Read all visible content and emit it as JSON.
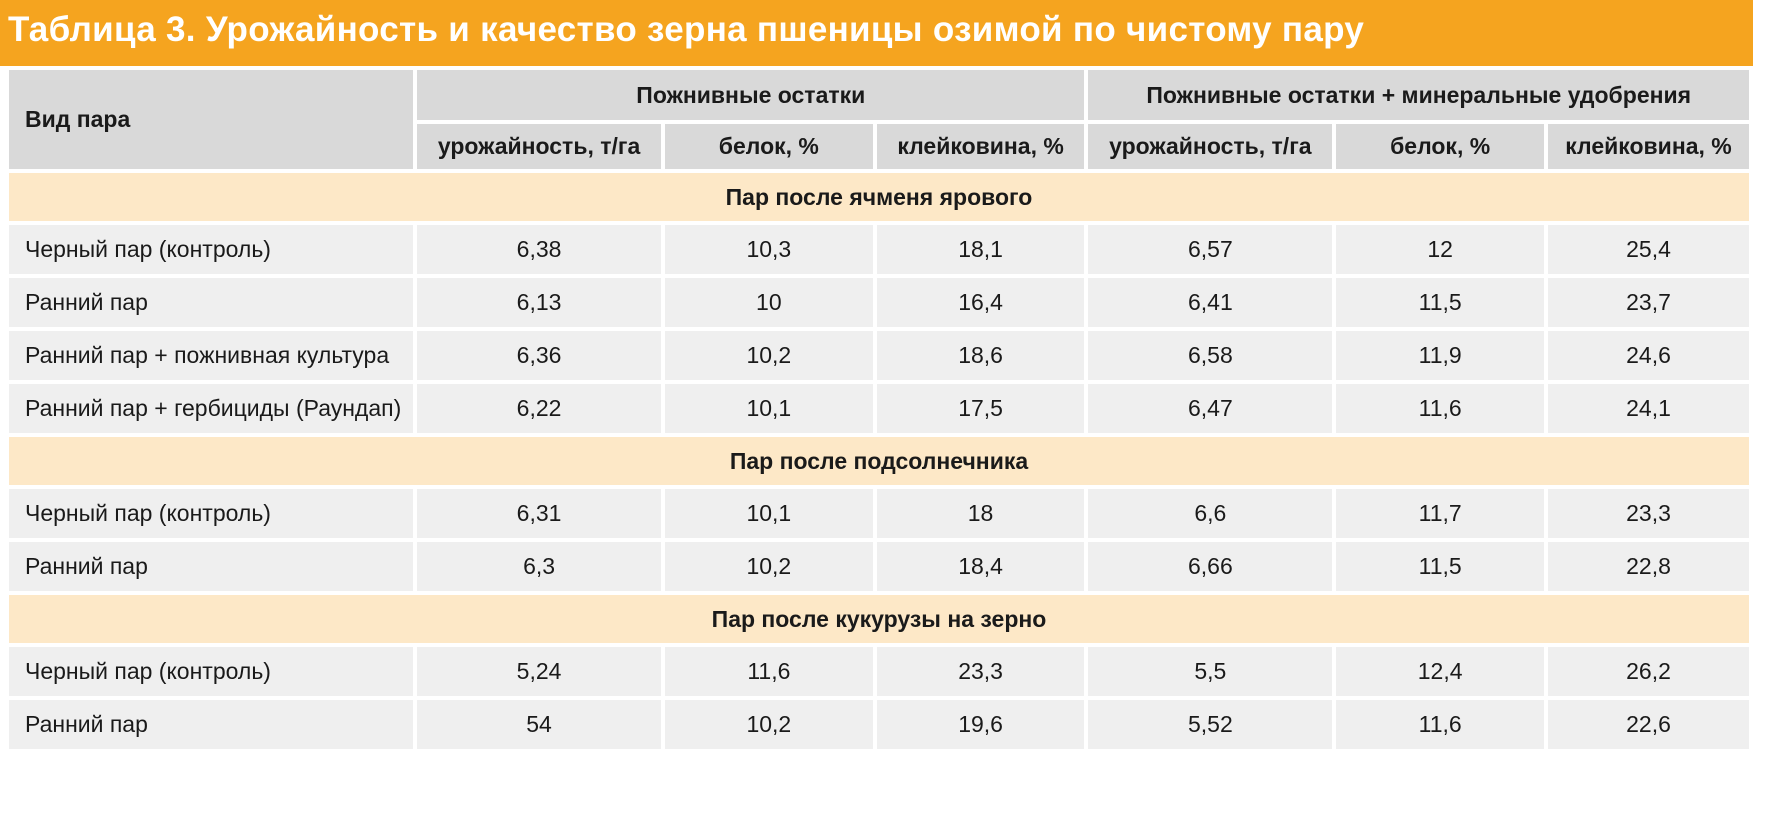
{
  "title": "Таблица 3. Урожайность и качество зерна пшеницы озимой по чистому пару",
  "header": {
    "row_label": "Вид пара",
    "group1": "Пожнивные остатки",
    "group2": "Пожнивные остатки + минеральные удобрения",
    "columns": [
      "урожайность, т/га",
      "белок, %",
      "клейковина, %",
      "урожайность, т/га",
      "белок, %",
      "клейковина, %"
    ]
  },
  "sections": [
    {
      "title": "Пар после ячменя ярового",
      "rows": [
        {
          "label": "Черный пар (контроль)",
          "values": [
            "6,38",
            "10,3",
            "18,1",
            "6,57",
            "12",
            "25,4"
          ]
        },
        {
          "label": "Ранний пар",
          "values": [
            "6,13",
            "10",
            "16,4",
            "6,41",
            "11,5",
            "23,7"
          ]
        },
        {
          "label": "Ранний пар + пожнивная культура",
          "values": [
            "6,36",
            "10,2",
            "18,6",
            "6,58",
            "11,9",
            "24,6"
          ]
        },
        {
          "label": "Ранний пар + гербициды (Раундап)",
          "values": [
            "6,22",
            "10,1",
            "17,5",
            "6,47",
            "11,6",
            "24,1"
          ]
        }
      ]
    },
    {
      "title": "Пар после подсолнечника",
      "rows": [
        {
          "label": "Черный пар (контроль)",
          "values": [
            "6,31",
            "10,1",
            "18",
            "6,6",
            "11,7",
            "23,3"
          ]
        },
        {
          "label": "Ранний пар",
          "values": [
            "6,3",
            "10,2",
            "18,4",
            "6,66",
            "11,5",
            "22,8"
          ]
        }
      ]
    },
    {
      "title": "Пар после кукурузы на зерно",
      "rows": [
        {
          "label": "Черный пар (контроль)",
          "values": [
            "5,24",
            "11,6",
            "23,3",
            "5,5",
            "12,4",
            "26,2"
          ]
        },
        {
          "label": "Ранний пар",
          "values": [
            "54",
            "10,2",
            "19,6",
            "5,52",
            "11,6",
            "22,6"
          ]
        }
      ]
    }
  ]
}
